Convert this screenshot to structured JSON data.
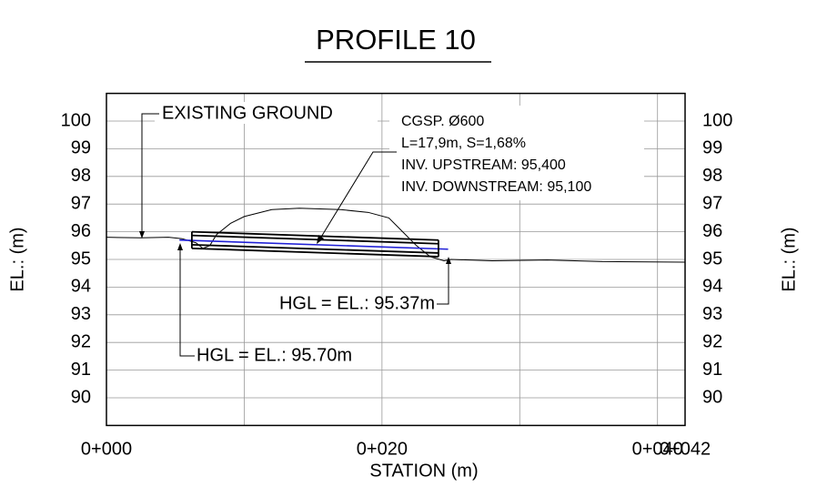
{
  "chart_data": {
    "type": "line",
    "title": "PROFILE 10",
    "xlabel": "STATION (m)",
    "ylabel": "EL.: (m)",
    "xlim": [
      0,
      42
    ],
    "xticks": [
      {
        "value": 0,
        "label": "0+000"
      },
      {
        "value": 20,
        "label": "0+020"
      },
      {
        "value": 40,
        "label": "0+040"
      },
      {
        "value": 42,
        "label": "0+042"
      }
    ],
    "xgrid": [
      10,
      20,
      30,
      40
    ],
    "ylim": [
      89,
      101
    ],
    "yticks": [
      90,
      91,
      92,
      93,
      94,
      95,
      96,
      97,
      98,
      99,
      100
    ],
    "grid": true,
    "series": [
      {
        "name": "EXISTING GROUND",
        "color": "#000000",
        "x": [
          0,
          2.5,
          4.5,
          5.5,
          6.5,
          7.0,
          7.5,
          8.0,
          9,
          10,
          12,
          14,
          17,
          19,
          20.5,
          21.5,
          22.5,
          23.5,
          24.5,
          25,
          28,
          32,
          36,
          42
        ],
        "values": [
          95.8,
          95.78,
          95.8,
          95.75,
          95.6,
          95.4,
          95.5,
          95.9,
          96.3,
          96.55,
          96.8,
          96.85,
          96.8,
          96.7,
          96.5,
          96.0,
          95.5,
          95.1,
          94.95,
          95.0,
          94.95,
          94.98,
          94.92,
          94.9
        ]
      },
      {
        "name": "HGL",
        "color": "#1f1fd6",
        "x": [
          5.3,
          24.8
        ],
        "values": [
          95.7,
          95.37
        ]
      }
    ],
    "pipe": {
      "start": 6.2,
      "end": 24.1,
      "invert_up": 95.4,
      "invert_down": 95.1,
      "diameter": 0.6
    },
    "annotations": {
      "pipe_type": "CGSP. Ø600",
      "pipe_geometry": "L=17,9m, S=1,68%",
      "invert_upstream": "INV. UPSTREAM: 95,400",
      "invert_downstream": "INV. DOWNSTREAM: 95,100",
      "hgl_downstream": "HGL = EL.: 95.37m",
      "hgl_upstream": "HGL = EL.: 95.70m"
    }
  }
}
